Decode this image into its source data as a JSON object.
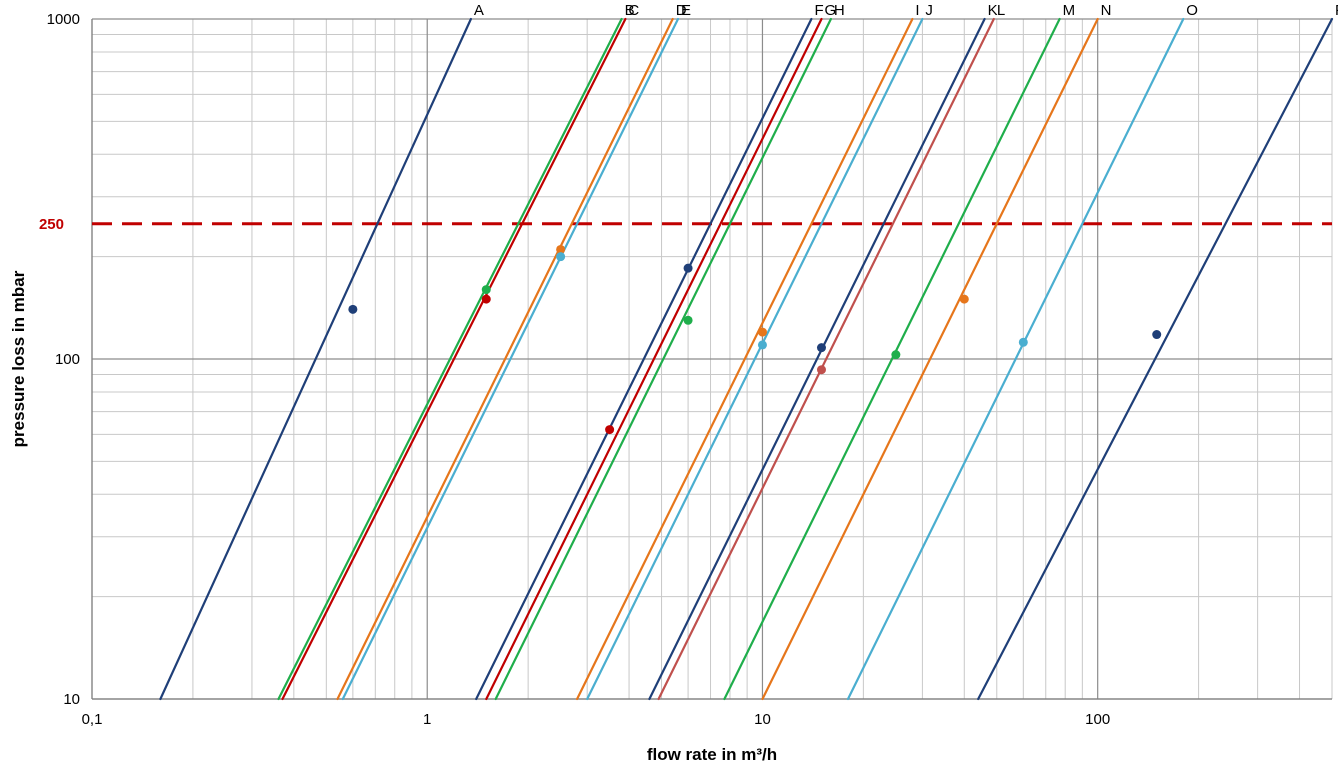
{
  "chart_data": {
    "type": "line",
    "xlabel": "flow rate in m³/h",
    "ylabel": "pressure loss in mbar",
    "x_scale": "log",
    "y_scale": "log",
    "xlim": [
      0.1,
      500
    ],
    "ylim": [
      10,
      1000
    ],
    "x_ticks": [
      0.1,
      1,
      10,
      100
    ],
    "x_tick_labels": [
      "0,1",
      "1",
      "10",
      "100"
    ],
    "y_ticks": [
      10,
      100,
      1000
    ],
    "y_tick_labels": [
      "10",
      "100",
      "1000"
    ],
    "grid": true,
    "reference_line": {
      "y": 250,
      "label": "250",
      "color": "#c00000",
      "style": "dashed"
    },
    "series": [
      {
        "name": "A",
        "color": "#1f3f78",
        "x": [
          0.16,
          1.35
        ],
        "y": [
          10,
          1000
        ],
        "marker": {
          "x": 0.6,
          "y": 140
        }
      },
      {
        "name": "B",
        "color": "#1fae4b",
        "x": [
          0.36,
          3.8
        ],
        "y": [
          10,
          1000
        ],
        "marker": {
          "x": 1.5,
          "y": 160
        }
      },
      {
        "name": "C",
        "color": "#c00000",
        "x": [
          0.37,
          3.9
        ],
        "y": [
          10,
          1000
        ],
        "marker": {
          "x": 1.5,
          "y": 150
        }
      },
      {
        "name": "D",
        "color": "#e6761b",
        "x": [
          0.54,
          5.4
        ],
        "y": [
          10,
          1000
        ],
        "marker": {
          "x": 2.5,
          "y": 210
        }
      },
      {
        "name": "E",
        "color": "#4aaed0",
        "x": [
          0.56,
          5.6
        ],
        "y": [
          10,
          1000
        ],
        "marker": {
          "x": 2.5,
          "y": 200
        }
      },
      {
        "name": "F",
        "color": "#1f3f78",
        "x": [
          1.4,
          14
        ],
        "y": [
          10,
          1000
        ],
        "marker": {
          "x": 6,
          "y": 185
        }
      },
      {
        "name": "G",
        "color": "#c00000",
        "x": [
          1.5,
          15
        ],
        "y": [
          10,
          1000
        ],
        "marker": {
          "x": 3.5,
          "y": 62
        }
      },
      {
        "name": "H",
        "color": "#1fae4b",
        "x": [
          1.6,
          16
        ],
        "y": [
          10,
          1000
        ],
        "marker": {
          "x": 6,
          "y": 130
        }
      },
      {
        "name": "I",
        "color": "#e6761b",
        "x": [
          2.8,
          28
        ],
        "y": [
          10,
          1000
        ],
        "marker": {
          "x": 10,
          "y": 120
        }
      },
      {
        "name": "J",
        "color": "#4aaed0",
        "x": [
          3.0,
          30
        ],
        "y": [
          10,
          1000
        ],
        "marker": {
          "x": 10,
          "y": 110
        }
      },
      {
        "name": "K",
        "color": "#1f3f78",
        "x": [
          4.6,
          46
        ],
        "y": [
          10,
          1000
        ],
        "marker": {
          "x": 15,
          "y": 108
        }
      },
      {
        "name": "L",
        "color": "#c0504d",
        "x": [
          4.9,
          49
        ],
        "y": [
          10,
          1000
        ],
        "marker": {
          "x": 15,
          "y": 93
        }
      },
      {
        "name": "M",
        "color": "#1fae4b",
        "x": [
          7.7,
          77
        ],
        "y": [
          10,
          1000
        ],
        "marker": {
          "x": 25,
          "y": 103
        }
      },
      {
        "name": "N",
        "color": "#e6761b",
        "x": [
          10,
          100
        ],
        "y": [
          10,
          1000
        ],
        "marker": {
          "x": 40,
          "y": 150
        }
      },
      {
        "name": "O",
        "color": "#4aaed0",
        "x": [
          18,
          180
        ],
        "y": [
          10,
          1000
        ],
        "marker": {
          "x": 60,
          "y": 112
        }
      },
      {
        "name": "P",
        "color": "#1f3f78",
        "x": [
          44,
          500
        ],
        "y": [
          10,
          1000
        ],
        "marker": {
          "x": 150,
          "y": 118
        }
      }
    ]
  }
}
